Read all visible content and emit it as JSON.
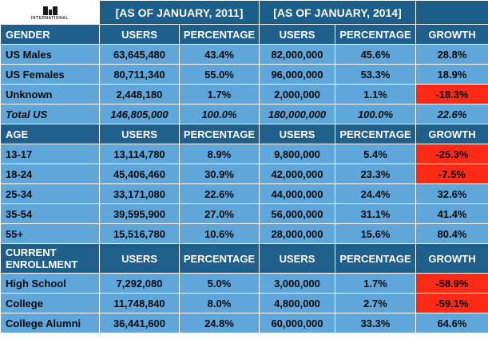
{
  "logo": {
    "text": "ISL",
    "sub": "INTERNATIONAL"
  },
  "periods": [
    "[AS OF JANUARY, 2011]",
    "[AS OF JANUARY, 2014]"
  ],
  "colors": {
    "header": "#1f5f8b",
    "cell": "#5fa6db",
    "negative": "#ff2a16"
  },
  "gender": {
    "header": [
      "GENDER",
      "USERS",
      "PERCENTAGE",
      "USERS",
      "PERCENTAGE",
      "GROWTH"
    ],
    "rows": [
      [
        "US Males",
        "63,645,480",
        "43.4%",
        "82,000,000",
        "45.6%",
        "28.8%"
      ],
      [
        "US Females",
        "80,711,340",
        "55.0%",
        "96,000,000",
        "53.3%",
        "18.9%"
      ],
      [
        "Unknown",
        "2,448,180",
        "1.7%",
        "2,000,000",
        "1.1%",
        "-18.3%"
      ],
      [
        "Total US",
        "146,805,000",
        "100.0%",
        "180,000,000",
        "100.0%",
        "22.6%"
      ]
    ]
  },
  "age": {
    "header": [
      "AGE",
      "USERS",
      "PERCENTAGE",
      "USERS",
      "PERCENTAGE",
      "GROWTH"
    ],
    "rows": [
      [
        "13-17",
        "13,114,780",
        "8.9%",
        "9,800,000",
        "5.4%",
        "-25.3%"
      ],
      [
        "18-24",
        "45,406,460",
        "30.9%",
        "42,000,000",
        "23.3%",
        "-7.5%"
      ],
      [
        "25-34",
        "33,171,080",
        "22.6%",
        "44,000,000",
        "24.4%",
        "32.6%"
      ],
      [
        "35-54",
        "39,595,900",
        "27.0%",
        "56,000,000",
        "31.1%",
        "41.4%"
      ],
      [
        "55+",
        "15,516,780",
        "10.6%",
        "28,000,000",
        "15.6%",
        "80.4%"
      ]
    ]
  },
  "enrollment": {
    "header": [
      "CURRENT ENROLLMENT",
      "USERS",
      "PERCENTAGE",
      "USERS",
      "PERCENTAGE",
      "GROWTH"
    ],
    "rows": [
      [
        "High School",
        "7,292,080",
        "5.0%",
        "3,000,000",
        "1.7%",
        "-58.9%"
      ],
      [
        "College",
        "11,748,840",
        "8.0%",
        "4,800,000",
        "2.7%",
        "-59.1%"
      ],
      [
        "College Alumni",
        "36,441,600",
        "24.8%",
        "60,000,000",
        "33.3%",
        "64.6%"
      ]
    ]
  }
}
